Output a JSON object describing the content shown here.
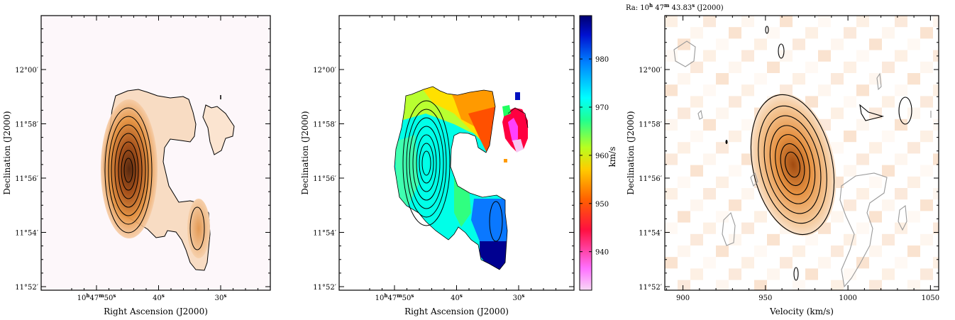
{
  "colors": {
    "panel_bg": "#fdf7fa",
    "intensity_peak": "#5a2608",
    "intensity_mid": "#e08a3a",
    "intensity_low": "#f6d2ae",
    "contour": "#000000",
    "negative_contour": "#9a9a9a"
  },
  "chart_data": [
    {
      "type": "heatmap",
      "title": "",
      "xlabel": "Right Ascension (J2000)",
      "ylabel": "Declination (J2000)",
      "x_ticks": [
        {
          "pre": "10",
          "sup1": "h",
          "mid": "47",
          "sup2": "m",
          "num": "50",
          "sup3": "s",
          "value_s": 50
        },
        {
          "pre": "",
          "sup1": "",
          "mid": "",
          "sup2": "",
          "num": "40",
          "sup3": "s",
          "value_s": 40
        },
        {
          "pre": "",
          "sup1": "",
          "mid": "",
          "sup2": "",
          "num": "30",
          "sup3": "s",
          "value_s": 30
        }
      ],
      "y_ticks": [
        {
          "label": "11°52′",
          "value_arcmin": -8
        },
        {
          "label": "11°54′",
          "value_arcmin": -6
        },
        {
          "label": "11°56′",
          "value_arcmin": -4
        },
        {
          "label": "11°58′",
          "value_arcmin": -2
        },
        {
          "label": "12°00′",
          "value_arcmin": 0
        }
      ],
      "xlim_s": [
        55.5,
        22
      ],
      "ylim_arcmin": [
        -8.1,
        2.6
      ],
      "grid": false
    },
    {
      "type": "heatmap",
      "title": "",
      "xlabel": "Right Ascension (J2000)",
      "ylabel": "Declination (J2000)",
      "x_ticks": [
        {
          "pre": "10",
          "sup1": "h",
          "mid": "47",
          "sup2": "m",
          "num": "50",
          "sup3": "s",
          "value_s": 50
        },
        {
          "pre": "",
          "sup1": "",
          "mid": "",
          "sup2": "",
          "num": "40",
          "sup3": "s",
          "value_s": 40
        },
        {
          "pre": "",
          "sup1": "",
          "mid": "",
          "sup2": "",
          "num": "30",
          "sup3": "s",
          "value_s": 30
        }
      ],
      "y_ticks": [
        {
          "label": "11°52′",
          "value_arcmin": -8
        },
        {
          "label": "11°54′",
          "value_arcmin": -6
        },
        {
          "label": "11°56′",
          "value_arcmin": -4
        },
        {
          "label": "11°58′",
          "value_arcmin": -2
        },
        {
          "label": "12°00′",
          "value_arcmin": 0
        }
      ],
      "colorbar": {
        "label": "km/s",
        "ticks": [
          940,
          950,
          960,
          970,
          980
        ],
        "range": [
          932,
          989
        ],
        "colors": [
          "#f8d8f6",
          "#ff40ff",
          "#ff0000",
          "#ffaa00",
          "#ffff00",
          "#40ff60",
          "#00ffff",
          "#0070ff",
          "#00008a"
        ]
      },
      "xlim_s": [
        55.5,
        22
      ],
      "ylim_arcmin": [
        -8.1,
        2.6
      ],
      "grid": false
    },
    {
      "type": "heatmap",
      "title": "",
      "header": {
        "prefix": "Ra:  10",
        "h": "h",
        "mid": " 47",
        "m": "m",
        "num": " 43.83",
        "s": "s",
        "suffix": "  (J2000)"
      },
      "xlabel": "Velocity (km/s)",
      "ylabel": "Declination (J2000)",
      "x_ticks": [
        900,
        950,
        1000,
        1050
      ],
      "y_ticks": [
        {
          "label": "11°52′",
          "value_arcmin": -8
        },
        {
          "label": "11°54′",
          "value_arcmin": -6
        },
        {
          "label": "11°56′",
          "value_arcmin": -4
        },
        {
          "label": "11°58′",
          "value_arcmin": -2
        },
        {
          "label": "12°00′",
          "value_arcmin": 0
        }
      ],
      "xlim": [
        889,
        1055
      ],
      "ylim_arcmin": [
        -8.1,
        2.6
      ],
      "grid": false
    }
  ]
}
